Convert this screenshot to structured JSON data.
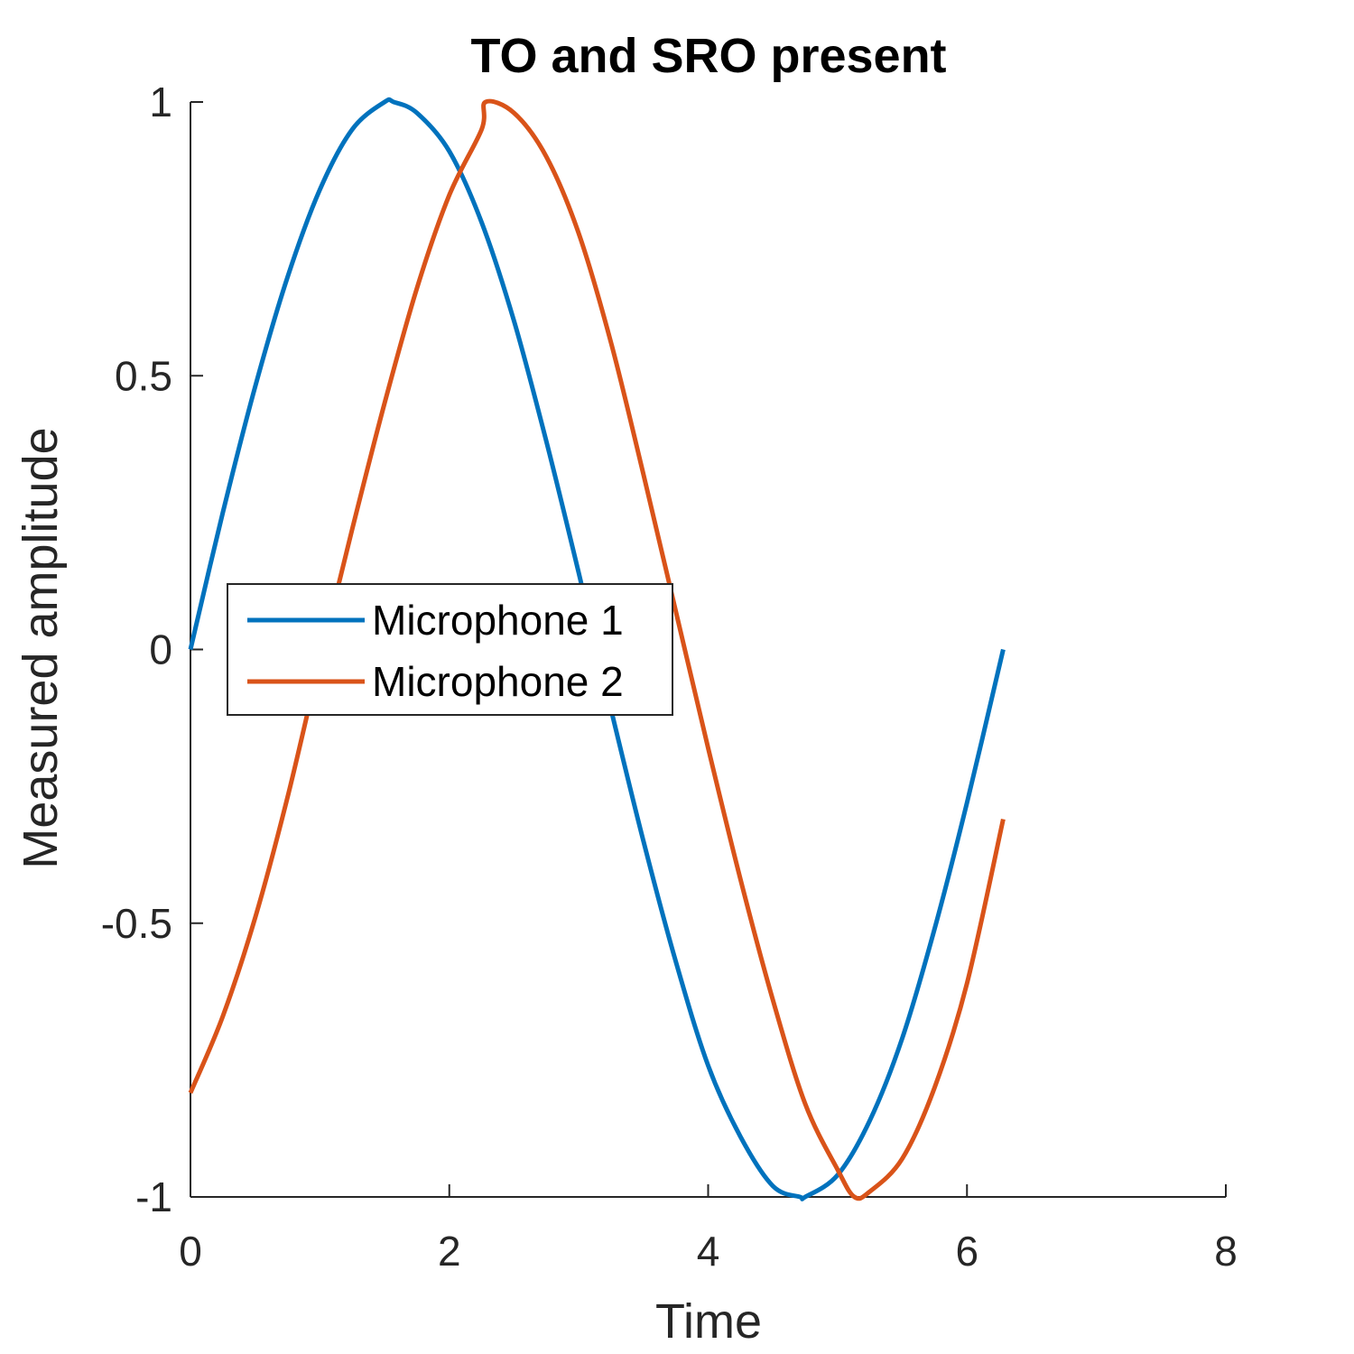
{
  "chart_data": {
    "type": "line",
    "title": "TO and SRO present",
    "xlabel": "Time",
    "ylabel": "Measured amplitude",
    "xlim": [
      0,
      8
    ],
    "ylim": [
      -1,
      1
    ],
    "xticks": [
      0,
      2,
      4,
      6,
      8
    ],
    "xtick_labels": [
      "0",
      "2",
      "4",
      "6",
      "8"
    ],
    "yticks": [
      -1,
      -0.5,
      0,
      0.5,
      1
    ],
    "ytick_labels": [
      "-1",
      "-0.5",
      "0",
      "0.5",
      "1"
    ],
    "grid": false,
    "legend_position": "center-left",
    "series": [
      {
        "name": "Microphone 1",
        "color": "#0072BD",
        "x": [
          0,
          0.25,
          0.5,
          0.75,
          1,
          1.25,
          1.5,
          1.57,
          1.75,
          2,
          2.25,
          2.5,
          2.75,
          3,
          3.25,
          3.5,
          3.75,
          4,
          4.25,
          4.5,
          4.71,
          4.75,
          5,
          5.25,
          5.5,
          5.75,
          6,
          6.28
        ],
        "y": [
          0,
          0.25,
          0.48,
          0.68,
          0.84,
          0.95,
          1.0,
          1.0,
          0.98,
          0.91,
          0.78,
          0.6,
          0.38,
          0.14,
          -0.11,
          -0.35,
          -0.57,
          -0.76,
          -0.89,
          -0.98,
          -1.0,
          -1.0,
          -0.96,
          -0.86,
          -0.71,
          -0.51,
          -0.28,
          0
        ]
      },
      {
        "name": "Microphone 2",
        "color": "#D95319",
        "x": [
          0,
          0.25,
          0.5,
          0.75,
          1,
          1.25,
          1.5,
          1.75,
          2,
          2.25,
          2.28,
          2.5,
          2.75,
          3,
          3.25,
          3.5,
          3.75,
          4,
          4.25,
          4.5,
          4.75,
          5,
          5.13,
          5.25,
          5.5,
          5.75,
          6,
          6.28
        ],
        "y": [
          -0.81,
          -0.67,
          -0.49,
          -0.27,
          -0.02,
          0.22,
          0.45,
          0.66,
          0.83,
          0.95,
          1.0,
          0.98,
          0.9,
          0.76,
          0.56,
          0.32,
          0.07,
          -0.18,
          -0.42,
          -0.64,
          -0.83,
          -0.95,
          -1.0,
          -0.99,
          -0.93,
          -0.8,
          -0.61,
          -0.31
        ]
      }
    ]
  }
}
